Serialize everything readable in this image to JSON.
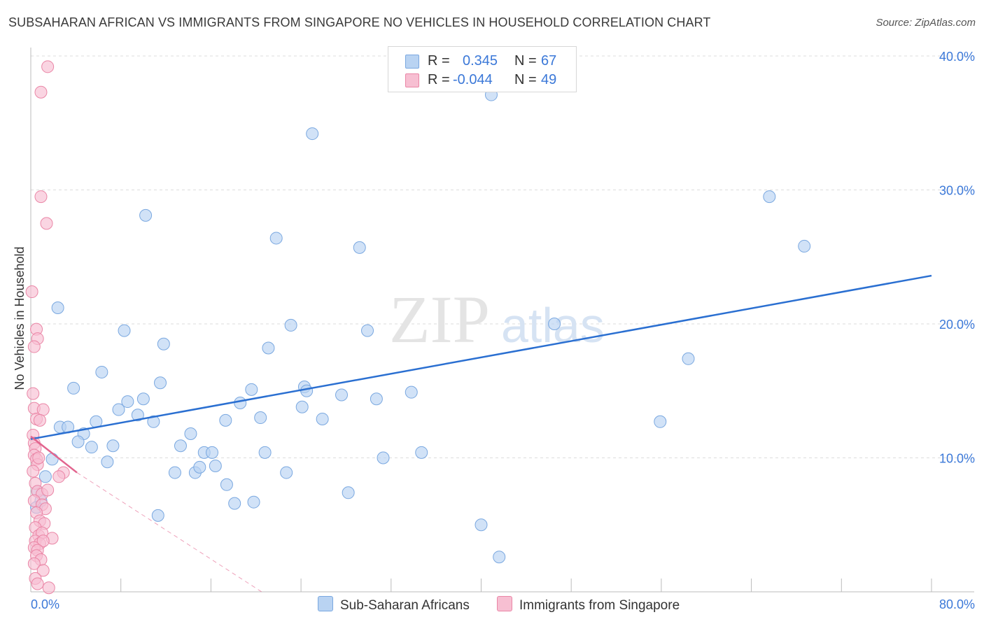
{
  "title": "SUBSAHARAN AFRICAN VS IMMIGRANTS FROM SINGAPORE NO VEHICLES IN HOUSEHOLD CORRELATION CHART",
  "source": "Source: ZipAtlas.com",
  "watermark": {
    "zip": "ZIP",
    "atlas": "atlas"
  },
  "legend": {
    "r_label": "R =",
    "n_label": "N =",
    "series1": {
      "r": "0.345",
      "n": "67"
    },
    "series2": {
      "r": "-0.044",
      "n": "49"
    }
  },
  "bottom_legend": {
    "series1": "Sub-Saharan Africans",
    "series2": "Immigrants from Singapore"
  },
  "colors": {
    "blue_fill": "#b9d3f2",
    "blue_stroke": "#7aa8e0",
    "blue_line": "#2a6fd1",
    "pink_fill": "#f7bfd2",
    "pink_stroke": "#ea86a6",
    "pink_line": "#e2648e",
    "tick_label": "#3b78d8",
    "grid": "#dddddd"
  },
  "chart_data": {
    "type": "scatter",
    "title": "SUBSAHARAN AFRICAN VS IMMIGRANTS FROM SINGAPORE NO VEHICLES IN HOUSEHOLD CORRELATION CHART",
    "xlabel": "",
    "ylabel": "No Vehicles in Household",
    "xlim": [
      0,
      80
    ],
    "ylim": [
      0,
      40
    ],
    "x_tick_labels": [
      "0.0%",
      "80.0%"
    ],
    "y_ticks": [
      10,
      20,
      30,
      40
    ],
    "y_tick_labels": [
      "10.0%",
      "20.0%",
      "30.0%",
      "40.0%"
    ],
    "grid": true,
    "series": [
      {
        "name": "Sub-Saharan Africans",
        "color": "#b9d3f2",
        "points": [
          [
            40.9,
            37.1
          ],
          [
            25.0,
            34.2
          ],
          [
            10.2,
            28.1
          ],
          [
            21.8,
            26.4
          ],
          [
            29.2,
            25.7
          ],
          [
            65.6,
            29.5
          ],
          [
            68.7,
            25.8
          ],
          [
            2.4,
            21.2
          ],
          [
            8.3,
            19.5
          ],
          [
            11.8,
            18.5
          ],
          [
            23.1,
            19.9
          ],
          [
            21.1,
            18.2
          ],
          [
            29.9,
            19.5
          ],
          [
            46.5,
            20.0
          ],
          [
            58.4,
            17.4
          ],
          [
            3.8,
            15.2
          ],
          [
            6.3,
            16.4
          ],
          [
            11.5,
            15.6
          ],
          [
            24.3,
            15.3
          ],
          [
            19.6,
            15.1
          ],
          [
            24.5,
            15.0
          ],
          [
            27.6,
            14.7
          ],
          [
            30.7,
            14.4
          ],
          [
            33.8,
            14.9
          ],
          [
            8.6,
            14.2
          ],
          [
            10.0,
            14.4
          ],
          [
            7.8,
            13.6
          ],
          [
            9.5,
            13.2
          ],
          [
            18.6,
            14.1
          ],
          [
            24.1,
            13.8
          ],
          [
            2.6,
            12.3
          ],
          [
            3.3,
            12.3
          ],
          [
            4.7,
            11.8
          ],
          [
            4.2,
            11.2
          ],
          [
            5.8,
            12.7
          ],
          [
            10.9,
            12.7
          ],
          [
            17.3,
            12.8
          ],
          [
            20.4,
            13.0
          ],
          [
            25.9,
            12.9
          ],
          [
            55.9,
            12.7
          ],
          [
            7.3,
            10.9
          ],
          [
            5.4,
            10.8
          ],
          [
            13.3,
            10.9
          ],
          [
            14.2,
            11.8
          ],
          [
            15.4,
            10.4
          ],
          [
            16.1,
            10.4
          ],
          [
            20.8,
            10.4
          ],
          [
            34.7,
            10.4
          ],
          [
            31.3,
            10.0
          ],
          [
            1.9,
            9.9
          ],
          [
            6.8,
            9.7
          ],
          [
            12.8,
            8.9
          ],
          [
            14.6,
            8.9
          ],
          [
            15.0,
            9.3
          ],
          [
            16.4,
            9.4
          ],
          [
            22.7,
            8.9
          ],
          [
            1.3,
            8.6
          ],
          [
            17.4,
            8.0
          ],
          [
            28.2,
            7.4
          ],
          [
            18.1,
            6.6
          ],
          [
            19.8,
            6.7
          ],
          [
            0.6,
            7.5
          ],
          [
            0.9,
            6.8
          ],
          [
            11.3,
            5.7
          ],
          [
            0.5,
            6.3
          ],
          [
            40.0,
            5.0
          ],
          [
            41.6,
            2.6
          ]
        ]
      },
      {
        "name": "Immigrants from Singapore",
        "color": "#f7bfd2",
        "points": [
          [
            1.5,
            39.2
          ],
          [
            0.9,
            37.3
          ],
          [
            0.9,
            29.5
          ],
          [
            1.4,
            27.5
          ],
          [
            0.1,
            22.4
          ],
          [
            0.5,
            19.6
          ],
          [
            0.6,
            18.9
          ],
          [
            0.3,
            18.3
          ],
          [
            0.2,
            14.8
          ],
          [
            0.3,
            13.7
          ],
          [
            1.1,
            13.6
          ],
          [
            0.5,
            12.9
          ],
          [
            0.8,
            12.8
          ],
          [
            0.2,
            11.7
          ],
          [
            0.3,
            11.1
          ],
          [
            0.4,
            10.7
          ],
          [
            0.3,
            10.2
          ],
          [
            0.5,
            9.9
          ],
          [
            0.6,
            9.5
          ],
          [
            0.7,
            10.0
          ],
          [
            0.2,
            9.0
          ],
          [
            2.9,
            8.9
          ],
          [
            2.5,
            8.6
          ],
          [
            0.4,
            8.1
          ],
          [
            0.6,
            7.5
          ],
          [
            1.0,
            7.3
          ],
          [
            1.5,
            7.6
          ],
          [
            0.3,
            6.8
          ],
          [
            1.0,
            6.5
          ],
          [
            1.3,
            6.2
          ],
          [
            0.5,
            5.9
          ],
          [
            0.8,
            5.3
          ],
          [
            1.2,
            5.1
          ],
          [
            0.4,
            4.8
          ],
          [
            0.7,
            4.2
          ],
          [
            1.0,
            4.4
          ],
          [
            1.9,
            4.0
          ],
          [
            0.4,
            3.8
          ],
          [
            0.8,
            3.6
          ],
          [
            1.1,
            3.8
          ],
          [
            0.3,
            3.3
          ],
          [
            0.6,
            3.1
          ],
          [
            0.5,
            2.7
          ],
          [
            0.9,
            2.4
          ],
          [
            0.3,
            2.1
          ],
          [
            1.1,
            1.6
          ],
          [
            0.4,
            1.0
          ],
          [
            1.6,
            0.3
          ],
          [
            0.6,
            0.6
          ]
        ]
      }
    ],
    "trendlines": [
      {
        "series": "Sub-Saharan Africans",
        "x": [
          0,
          80
        ],
        "y": [
          11.4,
          23.6
        ],
        "style": "solid"
      },
      {
        "series": "Immigrants from Singapore",
        "x": [
          0,
          4.1
        ],
        "y": [
          11.6,
          8.9
        ],
        "style": "solid"
      },
      {
        "series": "Immigrants from Singapore",
        "x": [
          4.1,
          20.5
        ],
        "y": [
          8.9,
          0
        ],
        "style": "dashed"
      }
    ]
  }
}
